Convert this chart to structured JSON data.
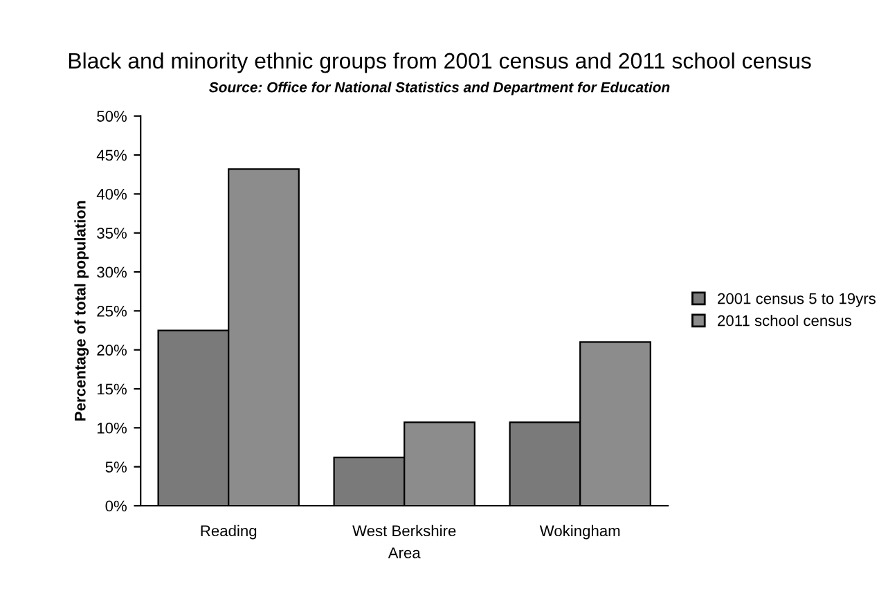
{
  "chart_data": {
    "type": "bar",
    "title": "Black and minority ethnic groups from 2001 census and 2011 school census",
    "subtitle": "Source: Office for National Statistics and Department for Education",
    "xlabel": "Area",
    "ylabel": "Percentage of total population",
    "categories": [
      "Reading",
      "West Berkshire",
      "Wokingham"
    ],
    "series": [
      {
        "name": "2001 census 5 to 19yrs",
        "color": "#7a7a7a",
        "values": [
          22.5,
          6.2,
          10.7
        ]
      },
      {
        "name": "2011 school census",
        "color": "#8c8c8c",
        "values": [
          43.2,
          10.7,
          21
        ]
      }
    ],
    "ylim": [
      0,
      50
    ],
    "yticks": [
      {
        "value": 0,
        "label": "0%"
      },
      {
        "value": 5,
        "label": "5%"
      },
      {
        "value": 10,
        "label": "10%"
      },
      {
        "value": 15,
        "label": "15%"
      },
      {
        "value": 20,
        "label": "20%"
      },
      {
        "value": 25,
        "label": "25%"
      },
      {
        "value": 30,
        "label": "30%"
      },
      {
        "value": 35,
        "label": "35%"
      },
      {
        "value": 40,
        "label": "40%"
      },
      {
        "value": 45,
        "label": "45%"
      },
      {
        "value": 50,
        "label": "50%"
      }
    ],
    "grid": false,
    "legend": "right"
  }
}
